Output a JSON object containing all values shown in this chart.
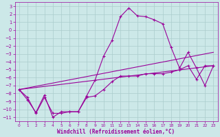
{
  "xlabel": "Windchill (Refroidissement éolien,°C)",
  "xlim": [
    -0.5,
    23.5
  ],
  "ylim": [
    -11.5,
    3.5
  ],
  "xticks": [
    0,
    1,
    2,
    3,
    4,
    5,
    6,
    7,
    8,
    9,
    10,
    11,
    12,
    13,
    14,
    15,
    16,
    17,
    18,
    19,
    20,
    21,
    22,
    23
  ],
  "yticks": [
    3,
    2,
    1,
    0,
    -1,
    -2,
    -3,
    -4,
    -5,
    -6,
    -7,
    -8,
    -9,
    -10,
    -11
  ],
  "bg_color": "#cce8e8",
  "line_color": "#990099",
  "grid_color": "#aacccc",
  "curve1_x": [
    0,
    1,
    2,
    3,
    4,
    5,
    6,
    7,
    8,
    9,
    10,
    11,
    12,
    13,
    14,
    15,
    16,
    17,
    18,
    19,
    20,
    21,
    22,
    23
  ],
  "curve1_y": [
    -7.5,
    -8.8,
    -10.4,
    -8.2,
    -11.0,
    -10.3,
    -10.3,
    -10.3,
    -8.3,
    -6.3,
    -3.3,
    -1.3,
    1.7,
    2.8,
    1.8,
    1.7,
    1.3,
    0.8,
    -2.2,
    -4.8,
    -2.8,
    -4.8,
    -7.0,
    -4.5
  ],
  "curve2_x": [
    0,
    1,
    2,
    3,
    4,
    5,
    6,
    7,
    8,
    9,
    10,
    11,
    12,
    13,
    14,
    15,
    16,
    17,
    18,
    19,
    20,
    21,
    22,
    23
  ],
  "curve2_y": [
    -7.5,
    -8.5,
    -10.5,
    -8.5,
    -10.5,
    -10.5,
    -10.3,
    -10.3,
    -8.5,
    -8.3,
    -7.5,
    -6.5,
    -5.8,
    -5.8,
    -5.8,
    -5.5,
    -5.5,
    -5.5,
    -5.3,
    -5.0,
    -4.5,
    -6.2,
    -4.5,
    -4.5
  ],
  "curve3_x": [
    0,
    23
  ],
  "curve3_y": [
    -7.5,
    -2.8
  ],
  "curve4_x": [
    0,
    23
  ],
  "curve4_y": [
    -7.5,
    -4.5
  ]
}
